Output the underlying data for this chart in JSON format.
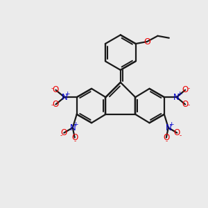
{
  "background_color": "#ebebeb",
  "bond_color": "#1a1a1a",
  "bond_width": 1.6,
  "N_color": "#0000cc",
  "O_color": "#ee0000",
  "plus_color": "#0000cc",
  "minus_color": "#ee0000",
  "font_size_atom": 8.5,
  "font_size_charge": 6.5,
  "figsize": [
    3.0,
    3.0
  ],
  "dpi": 100,
  "xlim": [
    0,
    10
  ],
  "ylim": [
    0,
    10
  ]
}
